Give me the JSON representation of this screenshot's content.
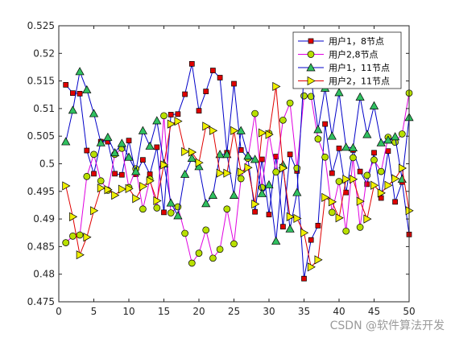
{
  "chart_data": {
    "type": "line",
    "xlim": [
      0,
      50
    ],
    "ylim": [
      0.475,
      0.525
    ],
    "x_ticks": [
      0,
      5,
      10,
      15,
      20,
      25,
      30,
      35,
      40,
      45,
      50
    ],
    "y_ticks": [
      0.475,
      0.48,
      0.485,
      0.49,
      0.495,
      0.5,
      0.505,
      0.51,
      0.515,
      0.52,
      0.525
    ],
    "x_tick_labels": [
      "0",
      "5",
      "10",
      "15",
      "20",
      "25",
      "30",
      "35",
      "40",
      "45",
      "50"
    ],
    "y_tick_labels": [
      "0.475",
      "0.48",
      "0.485",
      "0.49",
      "0.495",
      "0.5",
      "0.505",
      "0.51",
      "0.515",
      "0.52",
      "0.525"
    ],
    "grid": false,
    "legend_position": "top-right",
    "x": [
      1,
      2,
      3,
      4,
      5,
      6,
      7,
      8,
      9,
      10,
      11,
      12,
      13,
      14,
      15,
      16,
      17,
      18,
      19,
      20,
      21,
      22,
      23,
      24,
      25,
      26,
      27,
      28,
      29,
      30,
      31,
      32,
      33,
      34,
      35,
      36,
      37,
      38,
      39,
      40,
      41,
      42,
      43,
      44,
      45,
      46,
      47,
      48,
      49,
      50
    ],
    "series": [
      {
        "name": "用户1，8节点",
        "line_color": "#0000c8",
        "marker": "square",
        "marker_fill": "#e00000",
        "values": [
          0.5143,
          0.5128,
          0.5127,
          0.5024,
          0.4982,
          0.504,
          0.504,
          0.4982,
          0.498,
          0.5042,
          0.4981,
          0.5007,
          0.4981,
          0.503,
          0.4912,
          0.5089,
          0.509,
          0.5126,
          0.5181,
          0.5096,
          0.5131,
          0.5169,
          0.5156,
          0.502,
          0.5145,
          0.5025,
          0.501,
          0.4913,
          0.5008,
          0.4908,
          0.5013,
          0.4886,
          0.5017,
          0.4987,
          0.4792,
          0.4862,
          0.4888,
          0.5072,
          0.4983,
          0.5028,
          0.4948,
          0.5025,
          0.4986,
          0.4963,
          0.502,
          0.4938,
          0.5023,
          0.4931,
          0.4967,
          0.4872
        ]
      },
      {
        "name": "用户2,8节点",
        "line_color": "#e000e0",
        "marker": "circle",
        "marker_fill": "#b8e000",
        "values": [
          0.4857,
          0.4869,
          0.4871,
          0.4977,
          0.5017,
          0.4969,
          0.4952,
          0.5017,
          0.5028,
          0.4957,
          0.4991,
          0.4918,
          0.4972,
          0.492,
          0.5087,
          0.4911,
          0.4922,
          0.4874,
          0.482,
          0.4838,
          0.488,
          0.4829,
          0.4845,
          0.4918,
          0.4855,
          0.4973,
          0.501,
          0.5091,
          0.4957,
          0.5055,
          0.4985,
          0.5079,
          0.511,
          0.4992,
          0.5123,
          0.5122,
          0.5045,
          0.5012,
          0.4912,
          0.4968,
          0.4878,
          0.5011,
          0.4885,
          0.4979,
          0.5007,
          0.4986,
          0.5048,
          0.5039,
          0.5054,
          0.5128
        ]
      },
      {
        "name": "用户1，11节点",
        "line_color": "#0000c8",
        "marker": "triangle-up",
        "marker_fill": "#30c060",
        "values": [
          0.504,
          0.5097,
          0.5167,
          0.5134,
          0.5091,
          0.5038,
          0.5048,
          0.502,
          0.5037,
          0.5012,
          0.4986,
          0.506,
          0.5032,
          0.5078,
          0.5,
          0.4929,
          0.4906,
          0.4981,
          0.501,
          0.4995,
          0.4928,
          0.4943,
          0.5017,
          0.5017,
          0.4943,
          0.506,
          0.5014,
          0.5008,
          0.4946,
          0.4962,
          0.486,
          0.4998,
          0.4882,
          0.4948,
          0.5165,
          0.5155,
          0.5062,
          0.5137,
          0.505,
          0.5129,
          0.503,
          0.5029,
          0.5121,
          0.5053,
          0.5105,
          0.5038,
          0.5043,
          0.5049,
          0.4972,
          0.5084
        ]
      },
      {
        "name": "用户2，11节点",
        "line_color": "#e00000",
        "marker": "triangle-right",
        "marker_fill": "#f0f000",
        "values": [
          0.496,
          0.4904,
          0.4835,
          0.4867,
          0.4915,
          0.4956,
          0.4953,
          0.4943,
          0.4954,
          0.4955,
          0.4937,
          0.4959,
          0.4969,
          0.4933,
          0.4998,
          0.5072,
          0.5077,
          0.5022,
          0.5021,
          0.5002,
          0.5068,
          0.506,
          0.4983,
          0.4983,
          0.506,
          0.4985,
          0.4993,
          0.4927,
          0.5056,
          0.5053,
          0.514,
          0.4992,
          0.4904,
          0.4901,
          0.4875,
          0.4813,
          0.4826,
          0.4939,
          0.4931,
          0.4902,
          0.4972,
          0.4972,
          0.4932,
          0.49,
          0.4961,
          0.4947,
          0.4961,
          0.4973,
          0.4992,
          0.4915
        ]
      }
    ]
  },
  "watermark": "CSDN @软件算法开发"
}
